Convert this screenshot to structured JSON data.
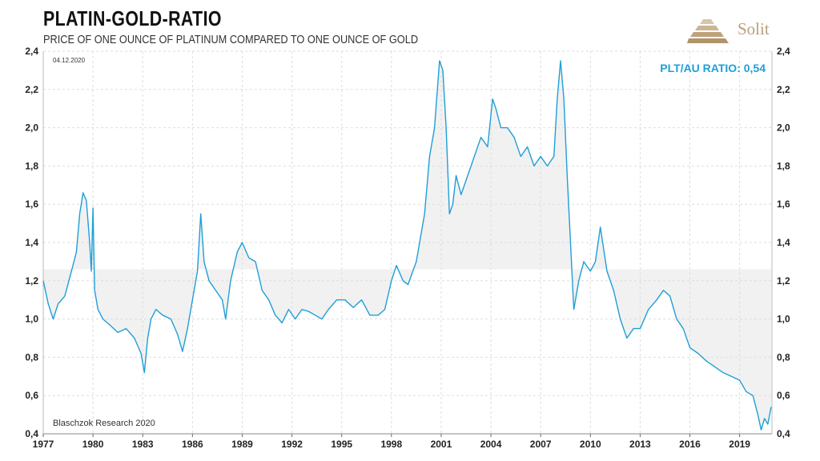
{
  "header": {
    "title": "PLATIN-GOLD-RATIO",
    "subtitle": "PRICE OF ONE OUNCE OF PLATINUM COMPARED TO ONE OUNCE OF GOLD",
    "brand": "Solit"
  },
  "colors": {
    "line": "#1e9fd8",
    "shade": "#f1f1f1",
    "annotation": "#1e9fd8",
    "brand": "#b9a07c",
    "grid": "#dddddd"
  },
  "chart_data": {
    "type": "line",
    "date_label": "04.12.2020",
    "source": "Blaschzok Research 2020",
    "annotation": "PLT/AU RATIO: 0,54",
    "x_ticks": [
      "1977",
      "1980",
      "1983",
      "1986",
      "1989",
      "1992",
      "1995",
      "1998",
      "2001",
      "2004",
      "2007",
      "2010",
      "2013",
      "2016",
      "2019"
    ],
    "y_ticks": [
      "0,4",
      "0,6",
      "0,8",
      "1,0",
      "1,2",
      "1,4",
      "1,6",
      "1,8",
      "2,0",
      "2,2",
      "2,4"
    ],
    "xlim": [
      1977.0,
      2020.95
    ],
    "ylim": [
      0.4,
      2.4
    ],
    "grid": true,
    "shaded_mean": 1.26,
    "series": [
      {
        "x": [
          1977.0,
          1977.3,
          1977.6,
          1977.9,
          1978.3,
          1978.7,
          1979.0,
          1979.2,
          1979.4,
          1979.6,
          1979.8,
          1979.9,
          1980.0,
          1980.1,
          1980.3,
          1980.6,
          1981.0,
          1981.5,
          1982.0,
          1982.5,
          1982.9,
          1983.1,
          1983.3,
          1983.5,
          1983.8,
          1984.2,
          1984.7,
          1985.1,
          1985.4,
          1985.7,
          1986.0,
          1986.3,
          1986.5,
          1986.7,
          1987.0,
          1987.4,
          1987.8,
          1988.0,
          1988.3,
          1988.7,
          1989.0,
          1989.4,
          1989.8,
          1990.2,
          1990.6,
          1991.0,
          1991.4,
          1991.8,
          1992.2,
          1992.6,
          1993.0,
          1993.4,
          1993.8,
          1994.2,
          1994.7,
          1995.2,
          1995.7,
          1996.2,
          1996.7,
          1997.2,
          1997.6,
          1998.0,
          1998.3,
          1998.7,
          1999.0,
          1999.5,
          2000.0,
          2000.3,
          2000.6,
          2000.9,
          2001.1,
          2001.3,
          2001.5,
          2001.7,
          2001.9,
          2002.2,
          2002.6,
          2003.0,
          2003.4,
          2003.8,
          2004.1,
          2004.3,
          2004.6,
          2005.0,
          2005.4,
          2005.8,
          2006.2,
          2006.6,
          2007.0,
          2007.4,
          2007.8,
          2008.0,
          2008.2,
          2008.4,
          2008.6,
          2008.8,
          2009.0,
          2009.3,
          2009.6,
          2010.0,
          2010.3,
          2010.6,
          2011.0,
          2011.4,
          2011.8,
          2012.2,
          2012.6,
          2013.0,
          2013.5,
          2014.0,
          2014.4,
          2014.8,
          2015.2,
          2015.6,
          2016.0,
          2016.5,
          2017.0,
          2017.5,
          2018.0,
          2018.5,
          2019.0,
          2019.4,
          2019.8,
          2020.1,
          2020.3,
          2020.5,
          2020.7,
          2020.9
        ],
        "y": [
          1.2,
          1.08,
          1.0,
          1.08,
          1.12,
          1.25,
          1.35,
          1.55,
          1.66,
          1.62,
          1.4,
          1.25,
          1.58,
          1.15,
          1.05,
          1.0,
          0.97,
          0.93,
          0.95,
          0.9,
          0.82,
          0.72,
          0.9,
          1.0,
          1.05,
          1.02,
          1.0,
          0.92,
          0.83,
          0.95,
          1.1,
          1.25,
          1.55,
          1.3,
          1.2,
          1.15,
          1.1,
          1.0,
          1.2,
          1.35,
          1.4,
          1.32,
          1.3,
          1.15,
          1.1,
          1.02,
          0.98,
          1.05,
          1.0,
          1.05,
          1.04,
          1.02,
          1.0,
          1.05,
          1.1,
          1.1,
          1.06,
          1.1,
          1.02,
          1.02,
          1.05,
          1.2,
          1.28,
          1.2,
          1.18,
          1.3,
          1.55,
          1.85,
          2.0,
          2.35,
          2.3,
          2.0,
          1.55,
          1.6,
          1.75,
          1.65,
          1.75,
          1.85,
          1.95,
          1.9,
          2.15,
          2.1,
          2.0,
          2.0,
          1.95,
          1.85,
          1.9,
          1.8,
          1.85,
          1.8,
          1.85,
          2.15,
          2.35,
          2.15,
          1.75,
          1.4,
          1.05,
          1.2,
          1.3,
          1.25,
          1.3,
          1.48,
          1.25,
          1.15,
          1.0,
          0.9,
          0.95,
          0.95,
          1.05,
          1.1,
          1.15,
          1.12,
          1.0,
          0.95,
          0.85,
          0.82,
          0.78,
          0.75,
          0.72,
          0.7,
          0.68,
          0.62,
          0.6,
          0.5,
          0.42,
          0.48,
          0.45,
          0.54
        ]
      }
    ]
  }
}
